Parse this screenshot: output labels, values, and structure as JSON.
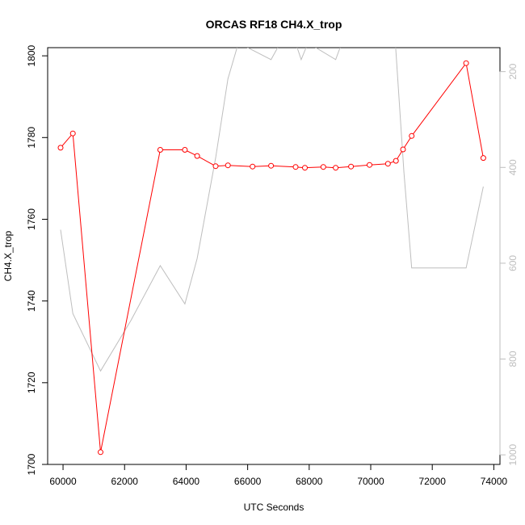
{
  "chart_data": {
    "type": "line",
    "title": "ORCAS RF18 CH4.X_trop",
    "xlabel": "UTC Seconds",
    "ylabel": "CH4.X_trop",
    "xlim": [
      59500,
      74200
    ],
    "ylim": [
      1700,
      1802
    ],
    "x_ticks": [
      60000,
      62000,
      64000,
      66000,
      68000,
      70000,
      72000,
      74000
    ],
    "y_ticks": [
      1700,
      1720,
      1740,
      1760,
      1780,
      1800
    ],
    "y2_ticks": [
      200,
      400,
      600,
      800,
      1000
    ],
    "y2lim": [
      1020,
      150
    ],
    "grid": false,
    "series": [
      {
        "color": "#ff0000",
        "marker": "open-circle",
        "axis": "left",
        "x": [
          59920,
          60320,
          61220,
          63160,
          63960,
          64360,
          64960,
          65360,
          66160,
          66760,
          67560,
          67860,
          68460,
          68860,
          69360,
          69960,
          70560,
          70820,
          71050,
          71330,
          73100,
          73660
        ],
        "y": [
          1777.5,
          1781,
          1703,
          1777,
          1777,
          1775.5,
          1773,
          1773.2,
          1772.9,
          1773.1,
          1772.8,
          1772.6,
          1772.8,
          1772.6,
          1772.9,
          1773.3,
          1773.6,
          1774.3,
          1777.1,
          1780.4,
          1798.2,
          1775
        ]
      },
      {
        "color": "#bebebe",
        "axis": "right",
        "x": [
          59920,
          60320,
          61220,
          62200,
          63160,
          63960,
          64360,
          64960,
          65360,
          65700,
          66760,
          67060,
          67560,
          67740,
          67960,
          68860,
          69060,
          70560,
          70800,
          71080,
          71330,
          73100,
          73660
        ],
        "y": [
          530,
          705,
          825,
          720,
          605,
          685,
          590,
          380,
          215,
          140,
          175,
          140,
          140,
          175,
          140,
          175,
          140,
          140,
          140,
          410,
          610,
          610,
          440
        ]
      }
    ]
  }
}
